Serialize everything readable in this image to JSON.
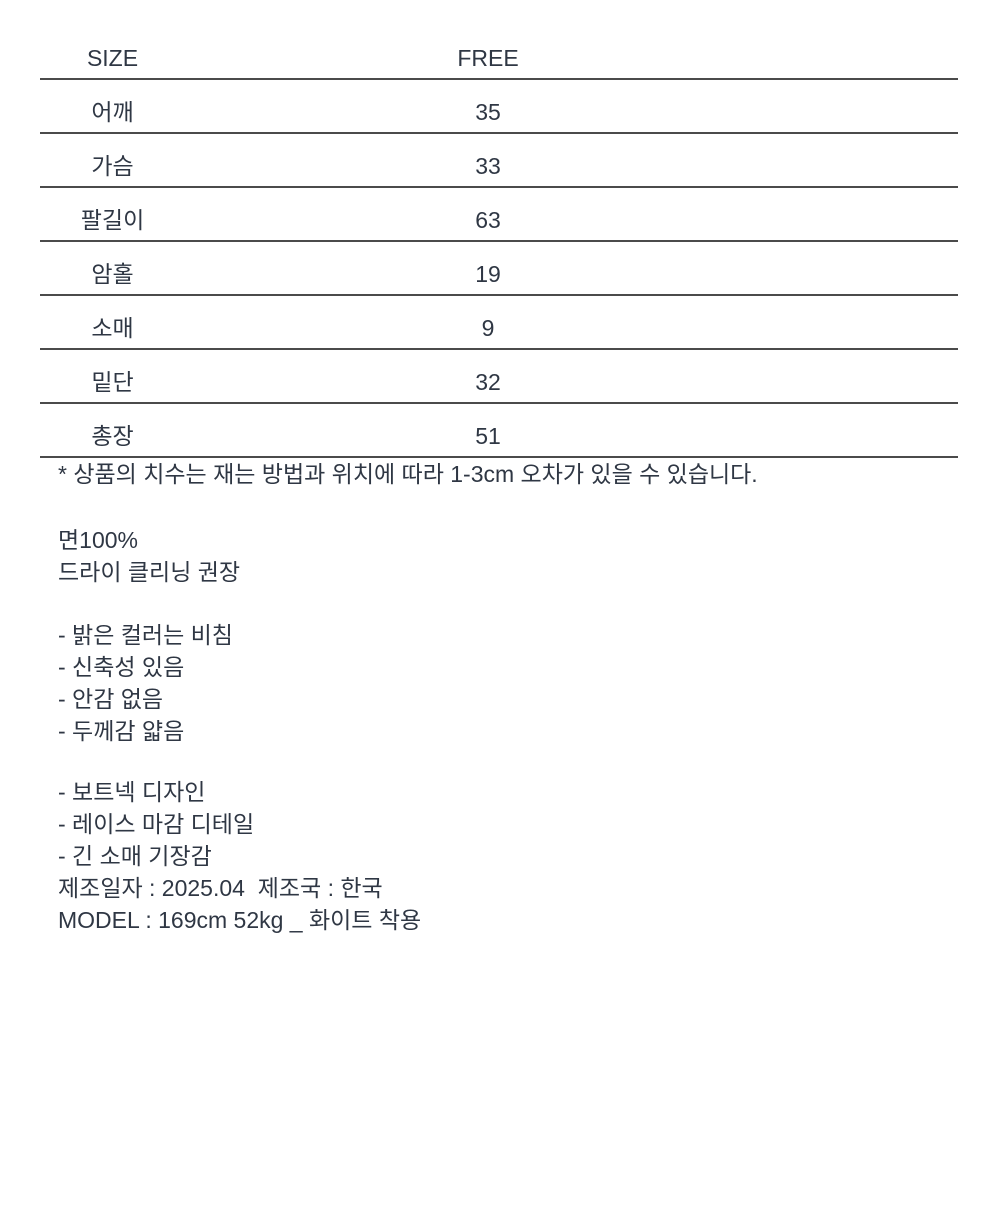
{
  "table": {
    "header": {
      "label": "SIZE",
      "value": "FREE"
    },
    "rows": [
      {
        "label": "어깨",
        "value": "35"
      },
      {
        "label": "가슴",
        "value": "33"
      },
      {
        "label": "팔길이",
        "value": "63"
      },
      {
        "label": "암홀",
        "value": "19"
      },
      {
        "label": "소매",
        "value": "9"
      },
      {
        "label": "밑단",
        "value": "32"
      },
      {
        "label": "총장",
        "value": "51"
      }
    ]
  },
  "notes": {
    "disclaimer": "* 상품의 치수는 재는 방법과 위치에 따라 1-3cm 오차가 있을 수 있습니다.",
    "fabric": [
      "면100%",
      "드라이 클리닝 권장"
    ],
    "features1": [
      "- 밝은 컬러는 비침",
      "- 신축성 있음",
      "- 안감 없음",
      "- 두께감 얇음"
    ],
    "features2": [
      "- 보트넥 디자인",
      "- 레이스 마감 디테일",
      "- 긴 소매 기장감"
    ],
    "manufacture": "제조일자 : 2025.04  제조국 : 한국",
    "model": "MODEL : 169cm 52kg _ 화이트 착용"
  },
  "colors": {
    "text": "#2f3744",
    "rule_line": "#4b4b4b",
    "background": "#ffffff"
  }
}
